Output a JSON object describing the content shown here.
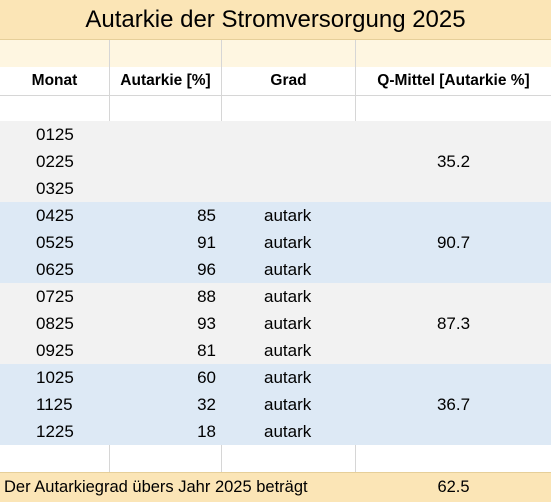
{
  "title": "Autarkie der Stromversorgung 2025",
  "columns": {
    "month": "Monat",
    "autarky": "Autarkie [%]",
    "grade": "Grad",
    "quarter_mean": "Q-Mittel [Autarkie %]"
  },
  "rows": [
    {
      "month": "0125",
      "autarky": "",
      "grade": ""
    },
    {
      "month": "0225",
      "autarky": "",
      "grade": ""
    },
    {
      "month": "0325",
      "autarky": "",
      "grade": ""
    },
    {
      "month": "0425",
      "autarky": "85",
      "grade": "autark"
    },
    {
      "month": "0525",
      "autarky": "91",
      "grade": "autark"
    },
    {
      "month": "0625",
      "autarky": "96",
      "grade": "autark"
    },
    {
      "month": "0725",
      "autarky": "88",
      "grade": "autark"
    },
    {
      "month": "0825",
      "autarky": "93",
      "grade": "autark"
    },
    {
      "month": "0925",
      "autarky": "81",
      "grade": "autark"
    },
    {
      "month": "1025",
      "autarky": "60",
      "grade": "autark"
    },
    {
      "month": "1125",
      "autarky": "32",
      "grade": "autark"
    },
    {
      "month": "1225",
      "autarky": "18",
      "grade": "autark"
    }
  ],
  "quarters": [
    {
      "mean": "35.2"
    },
    {
      "mean": "90.7"
    },
    {
      "mean": "87.3"
    },
    {
      "mean": "36.7"
    }
  ],
  "footer": {
    "label": "Der Autarkiegrad übers Jahr 2025 beträgt",
    "value": "62.5"
  },
  "colors": {
    "title_background": "#fbe5b6",
    "header_background": "#fef6e1",
    "band_gray": "#f2f2f2",
    "band_blue": "#dde9f5",
    "footer_background": "#fbe5b6"
  }
}
